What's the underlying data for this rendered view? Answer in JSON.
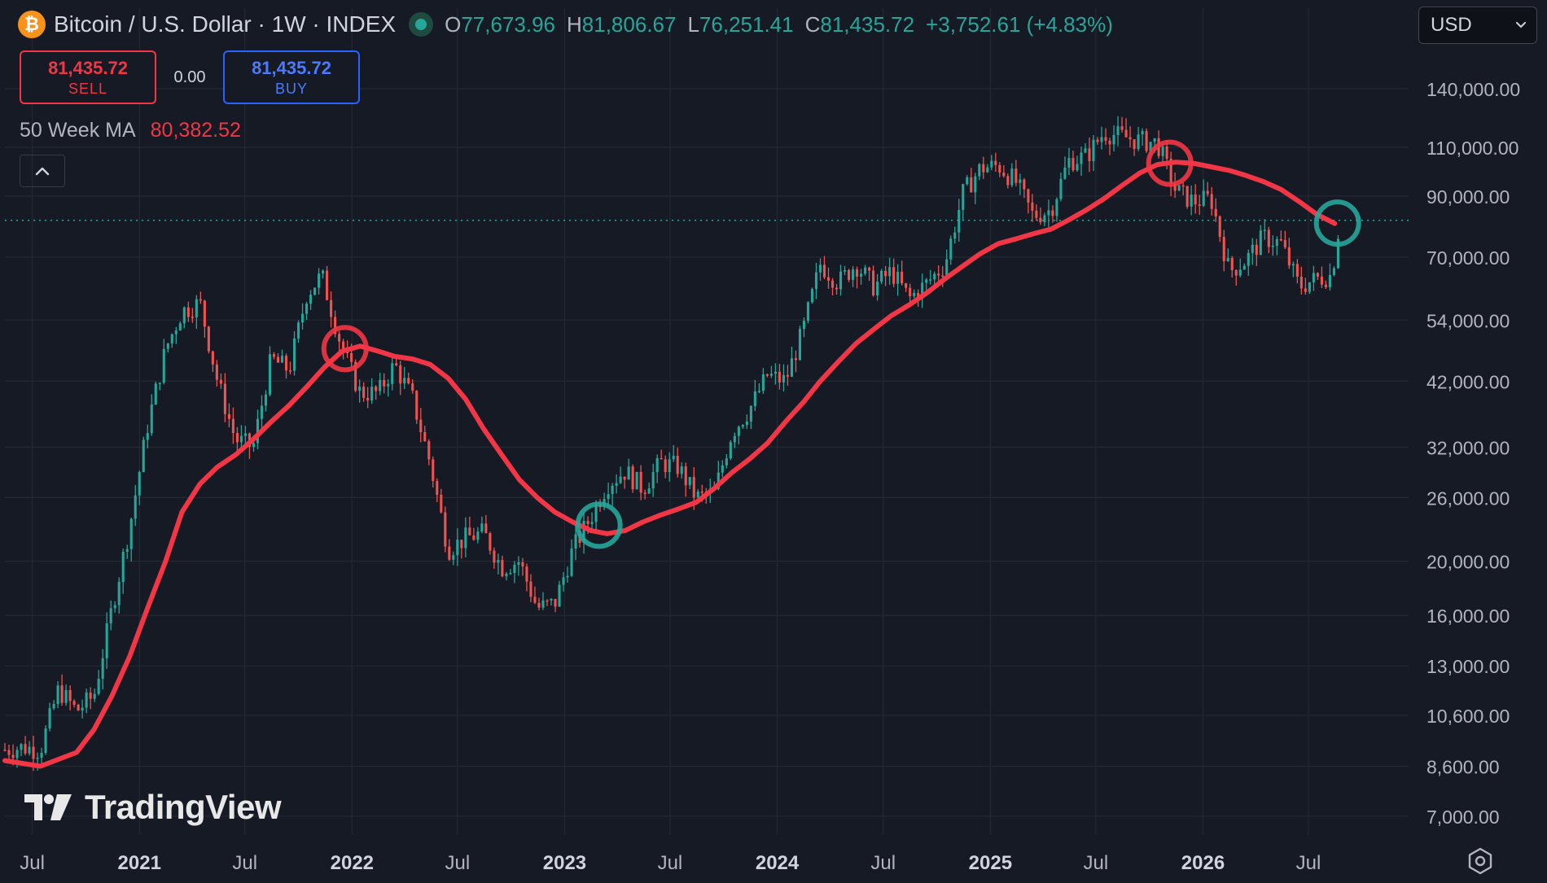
{
  "header": {
    "symbol_title": "Bitcoin / U.S. Dollar · 1W · INDEX",
    "coin_icon": "bitcoin-icon",
    "ohlc": {
      "o_label": "O",
      "o_value": "77,673.96",
      "h_label": "H",
      "h_value": "81,806.67",
      "l_label": "L",
      "l_value": "76,251.41",
      "c_label": "C",
      "c_value": "81,435.72",
      "change": "+3,752.61 (+4.83%)"
    }
  },
  "trade": {
    "sell_price": "81,435.72",
    "sell_label": "SELL",
    "spread": "0.00",
    "buy_price": "81,435.72",
    "buy_label": "BUY"
  },
  "indicator": {
    "name": "50 Week MA",
    "value": "80,382.52"
  },
  "currency_select": {
    "value": "USD"
  },
  "branding": {
    "logo_text": "TradingView"
  },
  "colors": {
    "background": "#161a25",
    "up": "#26a69a",
    "down": "#ef5350",
    "ma_line": "#f23645",
    "grid": "#242834",
    "text": "#b2b5be"
  },
  "chart_data": {
    "type": "line",
    "scale": "log",
    "ylim": [
      6500,
      165000
    ],
    "xlim": [
      "2020-05-15",
      "2026-12-20"
    ],
    "grid": true,
    "y_ticks": [
      {
        "value": 140000,
        "label": "140,000.00"
      },
      {
        "value": 110000,
        "label": "110,000.00"
      },
      {
        "value": 90000,
        "label": "90,000.00"
      },
      {
        "value": 70000,
        "label": "70,000.00"
      },
      {
        "value": 54000,
        "label": "54,000.00"
      },
      {
        "value": 42000,
        "label": "42,000.00"
      },
      {
        "value": 32000,
        "label": "32,000.00"
      },
      {
        "value": 26000,
        "label": "26,000.00"
      },
      {
        "value": 20000,
        "label": "20,000.00"
      },
      {
        "value": 16000,
        "label": "16,000.00"
      },
      {
        "value": 13000,
        "label": "13,000.00"
      },
      {
        "value": 10600,
        "label": "10,600.00"
      },
      {
        "value": 8600,
        "label": "8,600.00"
      },
      {
        "value": 7000,
        "label": "7,000.00"
      }
    ],
    "x_ticks": [
      {
        "date": "2020-07-01",
        "label": "Jul",
        "bold": false
      },
      {
        "date": "2021-01-01",
        "label": "2021",
        "bold": true
      },
      {
        "date": "2021-07-01",
        "label": "Jul",
        "bold": false
      },
      {
        "date": "2022-01-01",
        "label": "2022",
        "bold": true
      },
      {
        "date": "2022-07-01",
        "label": "Jul",
        "bold": false
      },
      {
        "date": "2023-01-01",
        "label": "2023",
        "bold": true
      },
      {
        "date": "2023-07-01",
        "label": "Jul",
        "bold": false
      },
      {
        "date": "2024-01-01",
        "label": "2024",
        "bold": true
      },
      {
        "date": "2024-07-01",
        "label": "Jul",
        "bold": false
      },
      {
        "date": "2025-01-01",
        "label": "2025",
        "bold": true
      },
      {
        "date": "2025-07-01",
        "label": "Jul",
        "bold": false
      },
      {
        "date": "2026-01-01",
        "label": "2026",
        "bold": true
      },
      {
        "date": "2026-07-01",
        "label": "Jul",
        "bold": false
      }
    ],
    "last_price": 81435.72,
    "series": [
      {
        "kind": "price",
        "points": [
          [
            "2020-05-15",
            9200
          ],
          [
            "2020-06-15",
            9300
          ],
          [
            "2020-07-15",
            9200
          ],
          [
            "2020-08-15",
            11800
          ],
          [
            "2020-09-15",
            10800
          ],
          [
            "2020-10-15",
            11500
          ],
          [
            "2020-11-15",
            16500
          ],
          [
            "2020-12-15",
            23000
          ],
          [
            "2021-01-15",
            35000
          ],
          [
            "2021-02-15",
            48000
          ],
          [
            "2021-03-15",
            56000
          ],
          [
            "2021-04-15",
            58000
          ],
          [
            "2021-05-15",
            42000
          ],
          [
            "2021-06-15",
            33000
          ],
          [
            "2021-07-15",
            32000
          ],
          [
            "2021-08-15",
            46000
          ],
          [
            "2021-09-15",
            44000
          ],
          [
            "2021-10-15",
            60000
          ],
          [
            "2021-11-10",
            65000
          ],
          [
            "2021-12-15",
            48000
          ],
          [
            "2022-01-15",
            40000
          ],
          [
            "2022-02-15",
            40000
          ],
          [
            "2022-03-15",
            45000
          ],
          [
            "2022-04-15",
            39000
          ],
          [
            "2022-05-15",
            30000
          ],
          [
            "2022-06-15",
            21000
          ],
          [
            "2022-07-15",
            22000
          ],
          [
            "2022-08-15",
            22500
          ],
          [
            "2022-09-15",
            19500
          ],
          [
            "2022-10-15",
            20000
          ],
          [
            "2022-11-15",
            16500
          ],
          [
            "2022-12-15",
            16800
          ],
          [
            "2023-01-15",
            21000
          ],
          [
            "2023-02-15",
            24000
          ],
          [
            "2023-03-15",
            27500
          ],
          [
            "2023-04-15",
            29000
          ],
          [
            "2023-05-15",
            27000
          ],
          [
            "2023-06-15",
            30000
          ],
          [
            "2023-07-15",
            29500
          ],
          [
            "2023-08-15",
            26000
          ],
          [
            "2023-09-15",
            26500
          ],
          [
            "2023-10-15",
            34000
          ],
          [
            "2023-11-15",
            37500
          ],
          [
            "2023-12-15",
            43000
          ],
          [
            "2024-01-15",
            42000
          ],
          [
            "2024-02-15",
            52000
          ],
          [
            "2024-03-15",
            68000
          ],
          [
            "2024-04-15",
            63000
          ],
          [
            "2024-05-15",
            68000
          ],
          [
            "2024-06-15",
            62000
          ],
          [
            "2024-07-15",
            66000
          ],
          [
            "2024-08-15",
            59000
          ],
          [
            "2024-09-15",
            63000
          ],
          [
            "2024-10-15",
            68000
          ],
          [
            "2024-11-15",
            91000
          ],
          [
            "2024-12-15",
            101000
          ],
          [
            "2025-01-15",
            102000
          ],
          [
            "2025-02-15",
            95000
          ],
          [
            "2025-03-15",
            83000
          ],
          [
            "2025-04-15",
            85000
          ],
          [
            "2025-05-15",
            104000
          ],
          [
            "2025-06-15",
            106000
          ],
          [
            "2025-07-15",
            117000
          ],
          [
            "2025-08-15",
            115000
          ],
          [
            "2025-09-15",
            113000
          ],
          [
            "2025-10-15",
            112000
          ],
          [
            "2025-11-15",
            92000
          ],
          [
            "2025-12-15",
            88000
          ],
          [
            "2026-01-15",
            89000
          ],
          [
            "2026-02-15",
            66000
          ],
          [
            "2026-03-15",
            69000
          ],
          [
            "2026-04-15",
            76000
          ],
          [
            "2026-05-15",
            74000
          ],
          [
            "2026-06-15",
            62000
          ],
          [
            "2026-07-15",
            64000
          ],
          [
            "2026-08-10",
            65000
          ],
          [
            "2026-08-24",
            81435.72
          ]
        ]
      },
      {
        "kind": "moving_average",
        "points": [
          [
            "2020-05-15",
            8800
          ],
          [
            "2020-07-15",
            8600
          ],
          [
            "2020-09-15",
            9100
          ],
          [
            "2020-10-15",
            10000
          ],
          [
            "2020-11-15",
            11500
          ],
          [
            "2020-12-15",
            13500
          ],
          [
            "2021-01-15",
            16500
          ],
          [
            "2021-02-15",
            20000
          ],
          [
            "2021-03-15",
            24500
          ],
          [
            "2021-04-15",
            27500
          ],
          [
            "2021-05-15",
            29500
          ],
          [
            "2021-06-15",
            31000
          ],
          [
            "2021-07-15",
            33000
          ],
          [
            "2021-08-15",
            35500
          ],
          [
            "2021-09-15",
            38000
          ],
          [
            "2021-10-15",
            41000
          ],
          [
            "2021-11-15",
            44500
          ],
          [
            "2021-12-15",
            47500
          ],
          [
            "2022-01-15",
            48500
          ],
          [
            "2022-02-15",
            47500
          ],
          [
            "2022-03-15",
            46500
          ],
          [
            "2022-04-15",
            46000
          ],
          [
            "2022-05-15",
            45000
          ],
          [
            "2022-06-15",
            42500
          ],
          [
            "2022-07-15",
            39000
          ],
          [
            "2022-08-15",
            34500
          ],
          [
            "2022-09-15",
            31000
          ],
          [
            "2022-10-15",
            28000
          ],
          [
            "2022-11-15",
            26000
          ],
          [
            "2022-12-15",
            24500
          ],
          [
            "2023-01-15",
            23500
          ],
          [
            "2023-02-15",
            22700
          ],
          [
            "2023-03-15",
            22400
          ],
          [
            "2023-04-15",
            22700
          ],
          [
            "2023-05-15",
            23500
          ],
          [
            "2023-06-15",
            24200
          ],
          [
            "2023-07-15",
            24800
          ],
          [
            "2023-08-15",
            25500
          ],
          [
            "2023-09-15",
            27000
          ],
          [
            "2023-10-15",
            28800
          ],
          [
            "2023-11-15",
            30500
          ],
          [
            "2023-12-15",
            32500
          ],
          [
            "2024-01-15",
            35500
          ],
          [
            "2024-02-15",
            38500
          ],
          [
            "2024-03-15",
            42000
          ],
          [
            "2024-04-15",
            45500
          ],
          [
            "2024-05-15",
            49000
          ],
          [
            "2024-06-15",
            52000
          ],
          [
            "2024-07-15",
            55000
          ],
          [
            "2024-08-15",
            57500
          ],
          [
            "2024-09-15",
            60500
          ],
          [
            "2024-10-15",
            64000
          ],
          [
            "2024-11-15",
            67500
          ],
          [
            "2024-12-15",
            71000
          ],
          [
            "2025-01-15",
            74000
          ],
          [
            "2025-02-15",
            75500
          ],
          [
            "2025-03-15",
            77000
          ],
          [
            "2025-04-15",
            78500
          ],
          [
            "2025-05-15",
            81500
          ],
          [
            "2025-06-15",
            85000
          ],
          [
            "2025-07-15",
            89000
          ],
          [
            "2025-08-15",
            94000
          ],
          [
            "2025-09-15",
            99000
          ],
          [
            "2025-10-15",
            102500
          ],
          [
            "2025-11-15",
            103500
          ],
          [
            "2025-12-15",
            103000
          ],
          [
            "2026-01-15",
            101500
          ],
          [
            "2026-02-15",
            100000
          ],
          [
            "2026-03-15",
            98000
          ],
          [
            "2026-04-15",
            95500
          ],
          [
            "2026-05-15",
            92500
          ],
          [
            "2026-06-15",
            88000
          ],
          [
            "2026-07-15",
            83500
          ],
          [
            "2026-08-15",
            80382.52
          ]
        ]
      }
    ],
    "annotations": [
      {
        "type": "circle",
        "color": "#f23645",
        "date": "2021-12-20",
        "value": 48000
      },
      {
        "type": "circle",
        "color": "#26a69a",
        "date": "2023-03-01",
        "value": 23200
      },
      {
        "type": "circle",
        "color": "#f23645",
        "date": "2025-11-05",
        "value": 103000
      },
      {
        "type": "circle",
        "color": "#26a69a",
        "date": "2026-08-20",
        "value": 80500
      }
    ]
  }
}
